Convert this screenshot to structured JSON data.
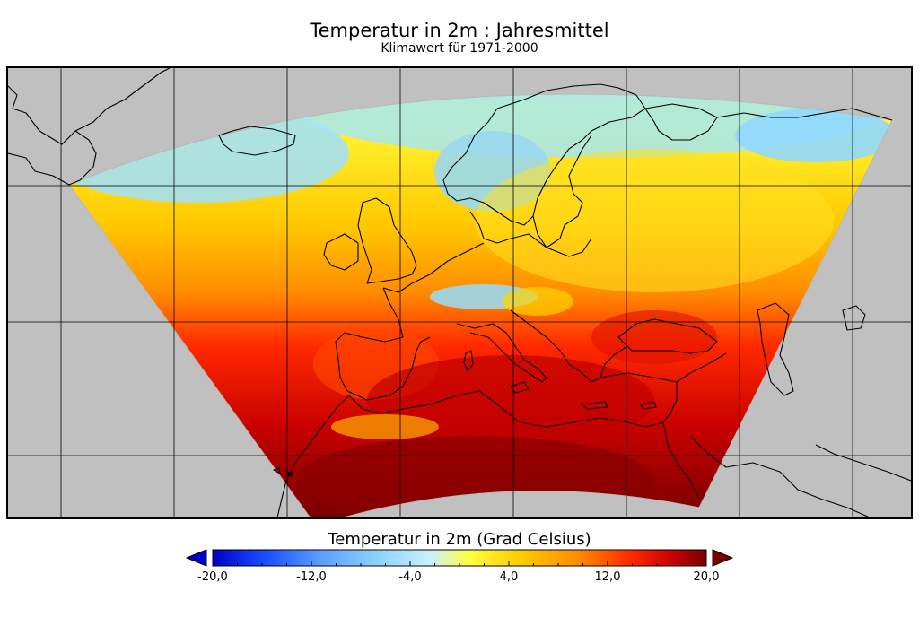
{
  "header": {
    "title": "Temperatur in 2m : Jahresmittel",
    "subtitle": "Klimawert für  1971-2000"
  },
  "colorbar": {
    "title": "Temperatur in 2m (Grad Celsius)",
    "min": -20,
    "max": 20,
    "tick_labels": [
      "-20,0",
      "-12,0",
      "-4,0",
      "4,0",
      "12,0",
      "20,0"
    ],
    "colors": [
      "#0000c8",
      "#1e50ff",
      "#5aa0ff",
      "#a0e6ff",
      "#ffff3c",
      "#ffc800",
      "#ff8c00",
      "#ff2800",
      "#c80000",
      "#780000"
    ],
    "extend": "both"
  },
  "map": {
    "background_color": "#c0c0c0",
    "region": "Europe",
    "grid": true,
    "coastline_color": "#000000"
  }
}
